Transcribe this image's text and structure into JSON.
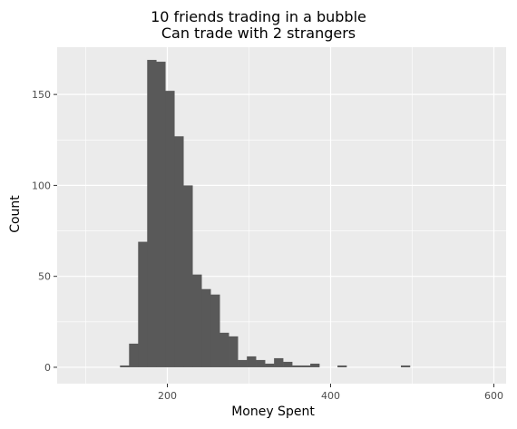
{
  "chart_data": {
    "type": "bar",
    "title": "10 friends trading in a bubble",
    "subtitle": "Can trade with 2 strangers",
    "xlabel": "Money Spent",
    "ylabel": "Count",
    "xlim": [
      65,
      615
    ],
    "ylim": [
      -9,
      176
    ],
    "x_ticks": [
      200,
      400,
      600
    ],
    "x_minor_ticks": [
      100,
      300,
      500
    ],
    "y_ticks": [
      0,
      50,
      100,
      150
    ],
    "y_minor_ticks": [
      25,
      75,
      125
    ],
    "bin_width": 11.1,
    "x": [
      142,
      153.1,
      164.2,
      175.3,
      186.4,
      197.5,
      208.6,
      219.7,
      230.8,
      241.9,
      253,
      264.1,
      275.2,
      286.3,
      297.4,
      308.5,
      319.6,
      330.7,
      341.8,
      352.9,
      364,
      375.1,
      386.2,
      397.3,
      408.4,
      419.5,
      430.6,
      441.7,
      452.8,
      463.9,
      475,
      486.1,
      497.2
    ],
    "values": [
      1,
      13,
      69,
      169,
      168,
      152,
      127,
      100,
      51,
      43,
      40,
      19,
      17,
      4,
      6,
      4,
      2,
      5,
      3,
      1,
      1,
      2,
      0,
      0,
      1,
      0,
      0,
      0,
      0,
      0,
      0,
      1,
      0
    ],
    "grid": true,
    "legend": "none",
    "bar_color": "#595959",
    "panel_color": "#ebebeb",
    "grid_color": "#ffffff"
  }
}
